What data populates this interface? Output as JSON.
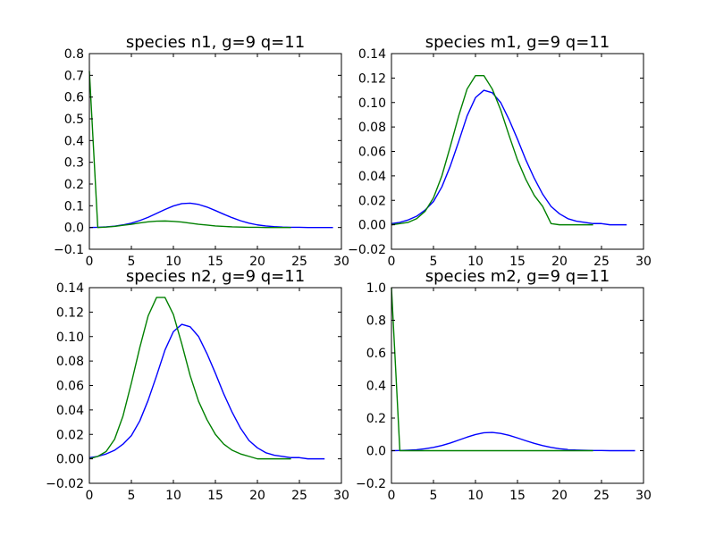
{
  "chart_data": [
    {
      "type": "line",
      "title": "species n1, g=9 q=11",
      "xlim": [
        0,
        30
      ],
      "ylim": [
        -0.1,
        0.8
      ],
      "xticks": [
        0,
        5,
        10,
        15,
        20,
        25,
        30
      ],
      "xtick_labels": [
        "0",
        "5",
        "10",
        "15",
        "20",
        "25",
        "30"
      ],
      "yticks": [
        -0.1,
        0.0,
        0.1,
        0.2,
        0.3,
        0.4,
        0.5,
        0.6,
        0.7,
        0.8
      ],
      "ytick_labels": [
        "−0.1",
        "0.0",
        "0.1",
        "0.2",
        "0.3",
        "0.4",
        "0.5",
        "0.6",
        "0.7",
        "0.8"
      ],
      "grid": false,
      "series": [
        {
          "color": "#0000ff",
          "x": [
            0,
            1,
            2,
            3,
            4,
            5,
            6,
            7,
            8,
            9,
            10,
            11,
            12,
            13,
            14,
            15,
            16,
            17,
            18,
            19,
            20,
            21,
            22,
            23,
            24,
            25,
            26,
            27,
            28,
            29
          ],
          "y": [
            0.0,
            0.001,
            0.003,
            0.006,
            0.012,
            0.02,
            0.032,
            0.047,
            0.065,
            0.083,
            0.099,
            0.11,
            0.112,
            0.106,
            0.094,
            0.078,
            0.061,
            0.045,
            0.031,
            0.02,
            0.012,
            0.007,
            0.004,
            0.002,
            0.001,
            0.001,
            0.0,
            0.0,
            0.0,
            0.0
          ]
        },
        {
          "color": "#008000",
          "x": [
            0,
            1,
            2,
            3,
            4,
            5,
            6,
            7,
            8,
            9,
            10,
            11,
            12,
            13,
            14,
            15,
            16,
            17,
            18,
            19,
            20,
            21,
            22,
            23,
            24
          ],
          "y": [
            0.72,
            0.0,
            0.002,
            0.005,
            0.01,
            0.015,
            0.021,
            0.026,
            0.029,
            0.03,
            0.028,
            0.025,
            0.02,
            0.015,
            0.011,
            0.007,
            0.005,
            0.003,
            0.002,
            0.001,
            0.001,
            0.0,
            0.0,
            0.0,
            0.0
          ]
        }
      ]
    },
    {
      "type": "line",
      "title": "species m1, g=9 q=11",
      "xlim": [
        0,
        30
      ],
      "ylim": [
        -0.02,
        0.14
      ],
      "xticks": [
        0,
        5,
        10,
        15,
        20,
        25,
        30
      ],
      "xtick_labels": [
        "0",
        "5",
        "10",
        "15",
        "20",
        "25",
        "30"
      ],
      "yticks": [
        -0.02,
        0.0,
        0.02,
        0.04,
        0.06,
        0.08,
        0.1,
        0.12,
        0.14
      ],
      "ytick_labels": [
        "−0.02",
        "0.00",
        "0.02",
        "0.04",
        "0.06",
        "0.08",
        "0.10",
        "0.12",
        "0.14"
      ],
      "grid": false,
      "series": [
        {
          "color": "#0000ff",
          "x": [
            0,
            1,
            2,
            3,
            4,
            5,
            6,
            7,
            8,
            9,
            10,
            11,
            12,
            13,
            14,
            15,
            16,
            17,
            18,
            19,
            20,
            21,
            22,
            23,
            24,
            25,
            26,
            27,
            28
          ],
          "y": [
            0.001,
            0.002,
            0.004,
            0.007,
            0.012,
            0.019,
            0.031,
            0.048,
            0.068,
            0.089,
            0.104,
            0.11,
            0.108,
            0.1,
            0.086,
            0.07,
            0.053,
            0.038,
            0.025,
            0.015,
            0.009,
            0.005,
            0.003,
            0.002,
            0.001,
            0.001,
            0.0,
            0.0,
            0.0
          ]
        },
        {
          "color": "#008000",
          "x": [
            0,
            1,
            2,
            3,
            4,
            5,
            6,
            7,
            8,
            9,
            10,
            11,
            12,
            13,
            14,
            15,
            16,
            17,
            18,
            19,
            20,
            21,
            22,
            23,
            24
          ],
          "y": [
            0.0,
            0.001,
            0.002,
            0.005,
            0.011,
            0.022,
            0.04,
            0.064,
            0.089,
            0.111,
            0.122,
            0.122,
            0.111,
            0.094,
            0.073,
            0.053,
            0.037,
            0.024,
            0.015,
            0.001,
            0.0,
            0.0,
            0.0,
            0.0,
            0.0
          ]
        }
      ]
    },
    {
      "type": "line",
      "title": "species n2, g=9 q=11",
      "xlim": [
        0,
        30
      ],
      "ylim": [
        -0.02,
        0.14
      ],
      "xticks": [
        0,
        5,
        10,
        15,
        20,
        25,
        30
      ],
      "xtick_labels": [
        "0",
        "5",
        "10",
        "15",
        "20",
        "25",
        "30"
      ],
      "yticks": [
        -0.02,
        0.0,
        0.02,
        0.04,
        0.06,
        0.08,
        0.1,
        0.12,
        0.14
      ],
      "ytick_labels": [
        "−0.02",
        "0.00",
        "0.02",
        "0.04",
        "0.06",
        "0.08",
        "0.10",
        "0.12",
        "0.14"
      ],
      "grid": false,
      "series": [
        {
          "color": "#0000ff",
          "x": [
            0,
            1,
            2,
            3,
            4,
            5,
            6,
            7,
            8,
            9,
            10,
            11,
            12,
            13,
            14,
            15,
            16,
            17,
            18,
            19,
            20,
            21,
            22,
            23,
            24,
            25,
            26,
            27,
            28
          ],
          "y": [
            0.001,
            0.002,
            0.004,
            0.007,
            0.012,
            0.019,
            0.031,
            0.048,
            0.068,
            0.089,
            0.104,
            0.11,
            0.108,
            0.1,
            0.086,
            0.07,
            0.053,
            0.038,
            0.025,
            0.015,
            0.009,
            0.005,
            0.003,
            0.002,
            0.001,
            0.001,
            0.0,
            0.0,
            0.0
          ]
        },
        {
          "color": "#008000",
          "x": [
            0,
            1,
            2,
            3,
            4,
            5,
            6,
            7,
            8,
            9,
            10,
            11,
            12,
            13,
            14,
            15,
            16,
            17,
            18,
            19,
            20,
            21,
            22,
            23,
            24
          ],
          "y": [
            0.0,
            0.002,
            0.006,
            0.016,
            0.035,
            0.062,
            0.091,
            0.117,
            0.132,
            0.132,
            0.118,
            0.094,
            0.068,
            0.047,
            0.032,
            0.02,
            0.012,
            0.007,
            0.004,
            0.002,
            0.0,
            0.0,
            0.0,
            0.0,
            0.0
          ]
        }
      ]
    },
    {
      "type": "line",
      "title": "species m2, g=9 q=11",
      "xlim": [
        0,
        30
      ],
      "ylim": [
        -0.2,
        1.0
      ],
      "xticks": [
        0,
        5,
        10,
        15,
        20,
        25,
        30
      ],
      "xtick_labels": [
        "0",
        "5",
        "10",
        "15",
        "20",
        "25",
        "30"
      ],
      "yticks": [
        -0.2,
        0.0,
        0.2,
        0.4,
        0.6,
        0.8,
        1.0
      ],
      "ytick_labels": [
        "−0.2",
        "0.0",
        "0.2",
        "0.4",
        "0.6",
        "0.8",
        "1.0"
      ],
      "grid": false,
      "series": [
        {
          "color": "#0000ff",
          "x": [
            0,
            1,
            2,
            3,
            4,
            5,
            6,
            7,
            8,
            9,
            10,
            11,
            12,
            13,
            14,
            15,
            16,
            17,
            18,
            19,
            20,
            21,
            22,
            23,
            24,
            25,
            26,
            27,
            28,
            29
          ],
          "y": [
            0.0,
            0.001,
            0.003,
            0.006,
            0.012,
            0.02,
            0.032,
            0.047,
            0.065,
            0.083,
            0.099,
            0.11,
            0.112,
            0.106,
            0.094,
            0.078,
            0.061,
            0.045,
            0.031,
            0.02,
            0.012,
            0.007,
            0.004,
            0.002,
            0.001,
            0.001,
            0.0,
            0.0,
            0.0,
            0.0
          ]
        },
        {
          "color": "#008000",
          "x": [
            0,
            1,
            2,
            3,
            4,
            5,
            6,
            7,
            8,
            9,
            10,
            11,
            12,
            13,
            14,
            15,
            16,
            17,
            18,
            19,
            20,
            21,
            22,
            23,
            24
          ],
          "y": [
            1.0,
            0.0,
            0.0,
            0.0,
            0.0,
            0.0,
            0.0,
            0.0,
            0.0,
            0.0,
            0.0,
            0.0,
            0.0,
            0.0,
            0.0,
            0.0,
            0.0,
            0.0,
            0.0,
            0.0,
            0.0,
            0.0,
            0.0,
            0.0,
            0.0
          ]
        }
      ]
    }
  ]
}
